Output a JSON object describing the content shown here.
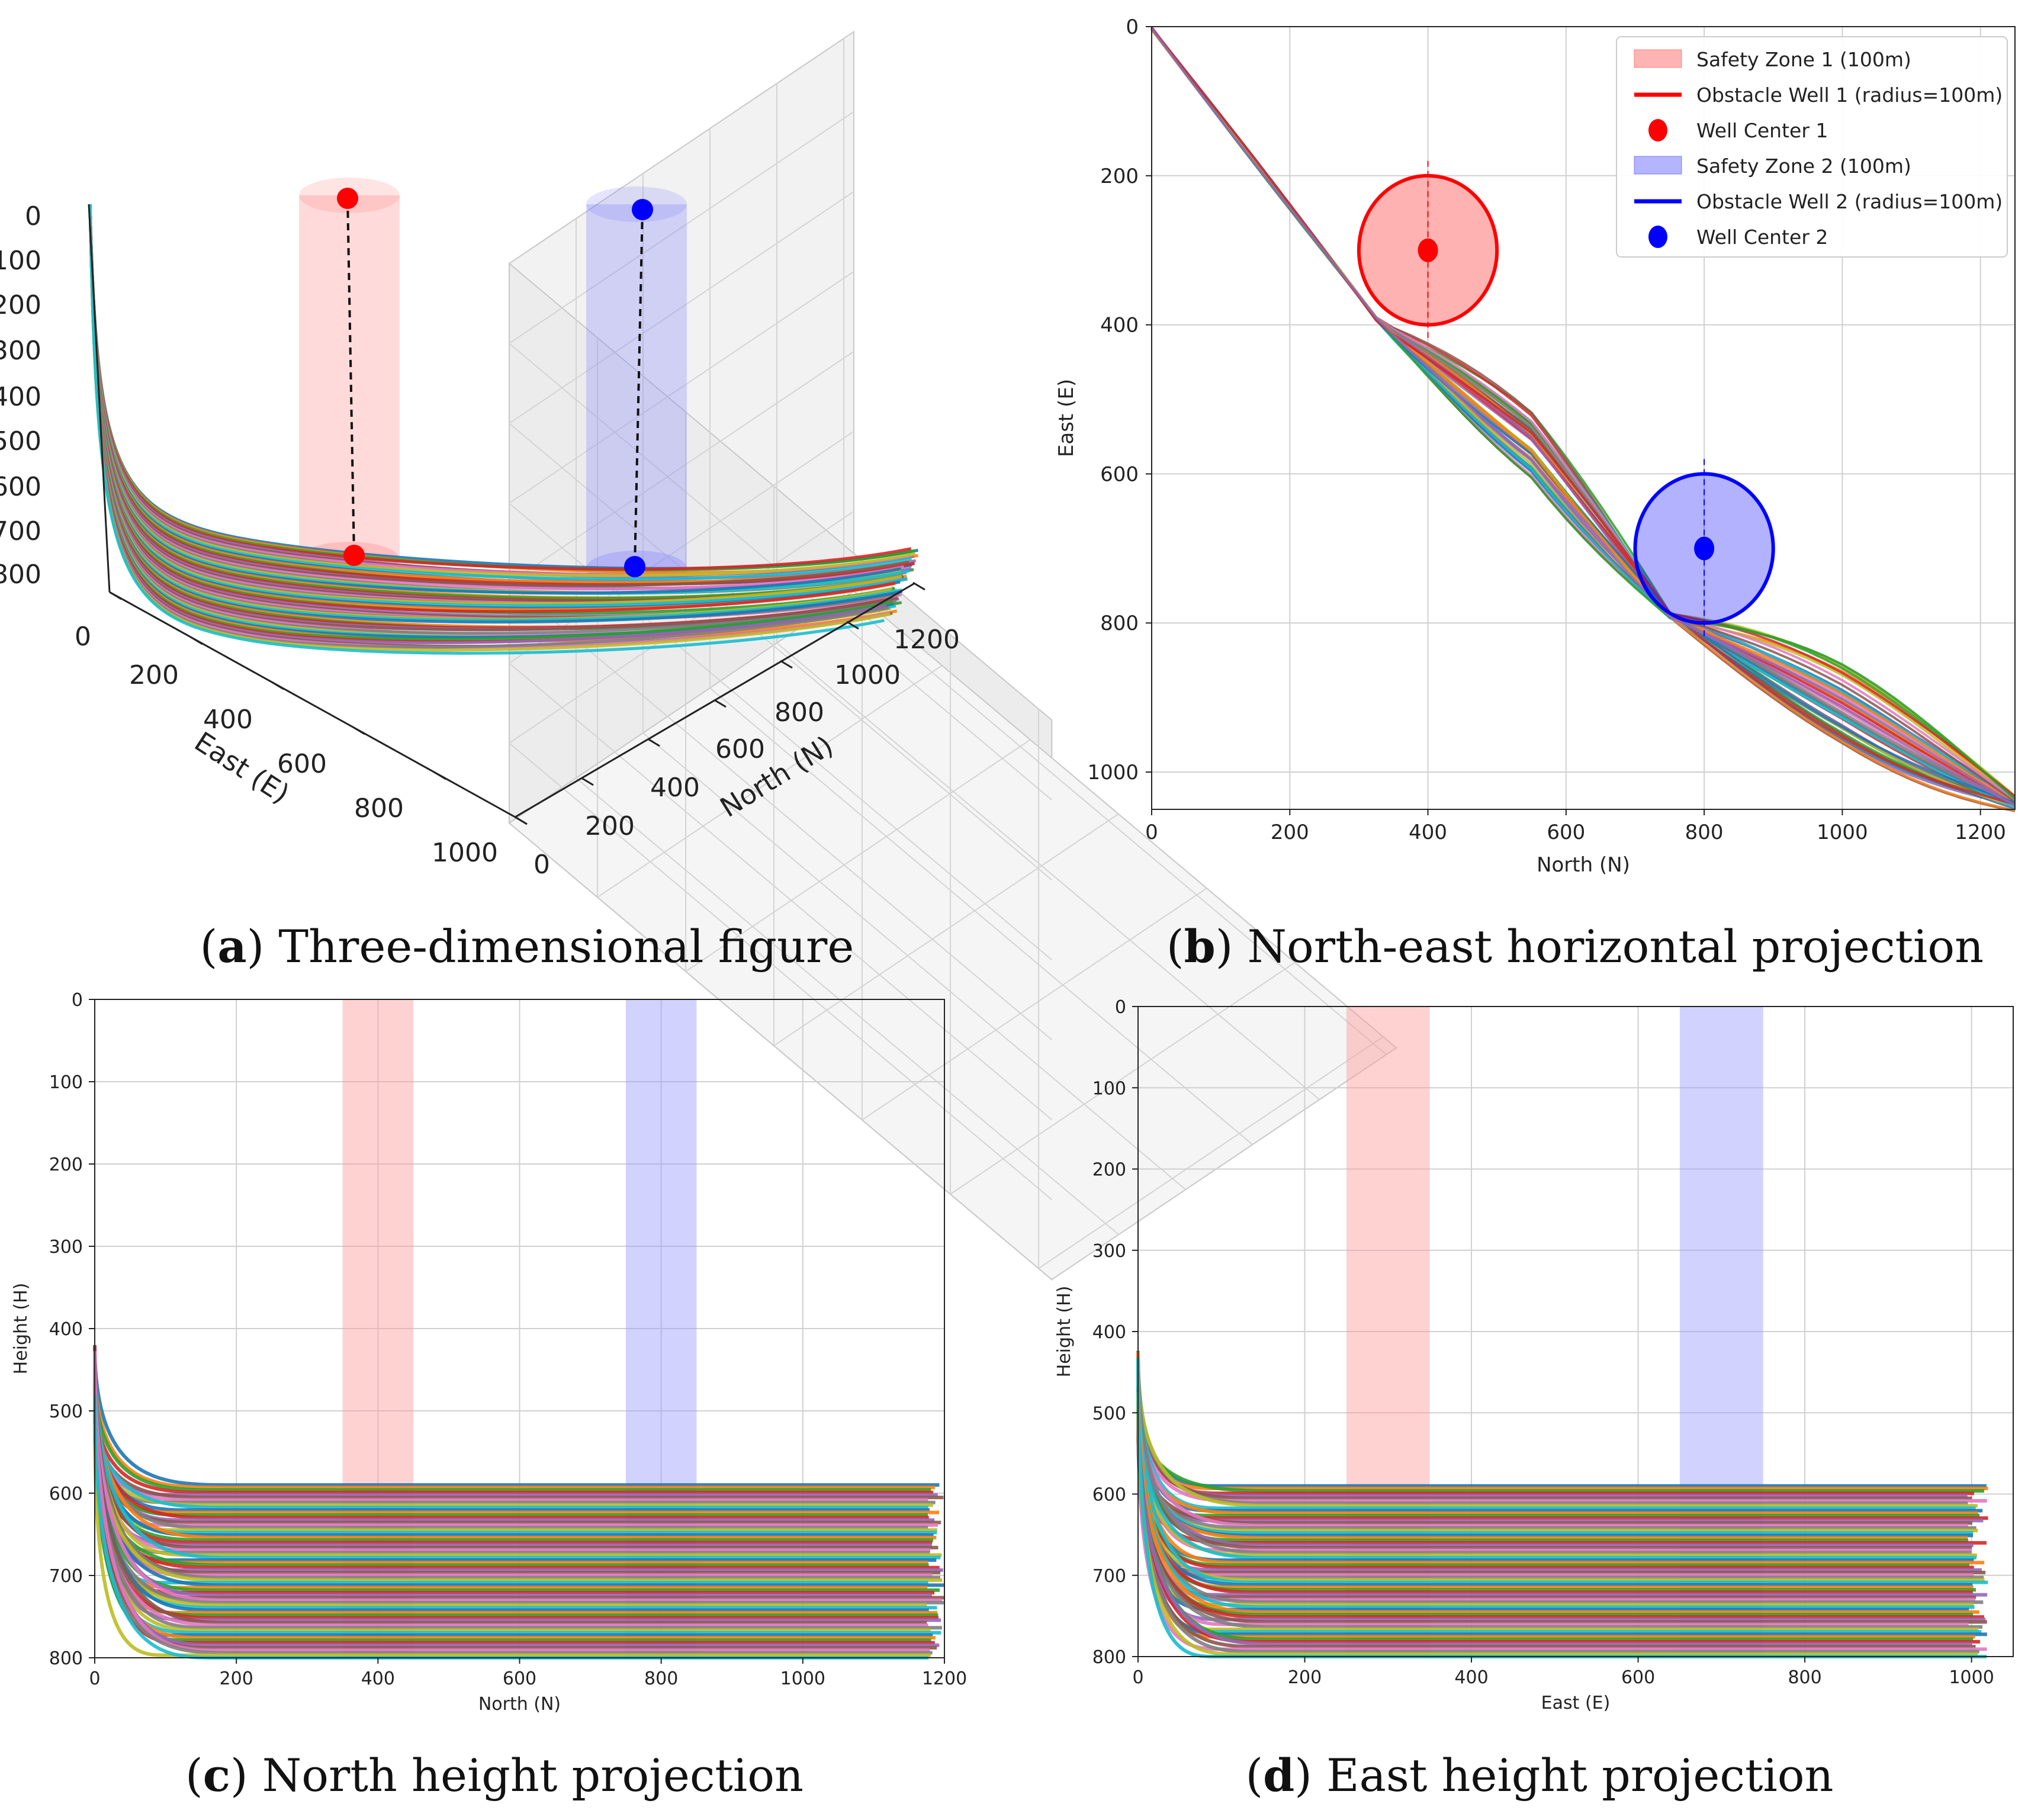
{
  "palette": [
    "#1f77b4",
    "#ff7f0e",
    "#2ca02c",
    "#d62728",
    "#9467bd",
    "#8c564b",
    "#e377c2",
    "#7f7f7f",
    "#bcbd22",
    "#17becf"
  ],
  "colors": {
    "zone1": "#ff9b9b",
    "zone2": "#9b9bff",
    "well1": "#ff0000",
    "well2": "#0000ff",
    "grid": "#d0d0d0"
  },
  "captions": {
    "a": {
      "letter": "a",
      "text": ") Three-dimensional figure"
    },
    "b": {
      "letter": "b",
      "text": ") North-east horizontal projection"
    },
    "c": {
      "letter": "c",
      "text": ") North height projection"
    },
    "d": {
      "letter": "d",
      "text": ") East height projection"
    }
  },
  "chart_data": [
    {
      "id": "a",
      "type": "line",
      "title": "Three-dimensional figure",
      "xlabel": "North (N)",
      "ylabel": "East (E)",
      "zlabel": "",
      "xticks": [
        "0",
        "200",
        "400",
        "600",
        "800",
        "1000",
        "1200"
      ],
      "yticks": [
        "0",
        "200",
        "400",
        "600",
        "800",
        "1000"
      ],
      "zticks": [
        "0",
        "100",
        "200",
        "300",
        "400",
        "500",
        "600",
        "700",
        "800"
      ],
      "wells": [
        {
          "name": "Well Center 1",
          "north": 400,
          "east": 300,
          "color": "#ff0000"
        },
        {
          "name": "Well Center 2",
          "north": 800,
          "east": 700,
          "color": "#0000ff"
        }
      ],
      "trajectories": {
        "count": 60,
        "kickoff_depth_range": [
          420,
          520
        ],
        "landing_depth_range": [
          590,
          800
        ],
        "north_end": 1200,
        "east_end": 1030
      }
    },
    {
      "id": "b",
      "type": "line",
      "title": "North-east horizontal projection",
      "xlabel": "North (N)",
      "ylabel": "East (E)",
      "xlim": [
        0,
        1250
      ],
      "ylim": [
        1050,
        0
      ],
      "xticks": [
        "0",
        "200",
        "400",
        "600",
        "800",
        "1000",
        "1200"
      ],
      "yticks": [
        "0",
        "200",
        "400",
        "600",
        "800",
        "1000"
      ],
      "legend": [
        "Safety Zone 1 (100m)",
        "Obstacle Well 1 (radius=100m)",
        "Well Center 1",
        "Safety Zone 2 (100m)",
        "Obstacle Well 2 (radius=100m)",
        "Well Center 2"
      ],
      "obstacles": [
        {
          "north": 400,
          "east": 300,
          "radius": 100,
          "color": "#ff0000"
        },
        {
          "north": 800,
          "east": 700,
          "radius": 100,
          "color": "#0000ff"
        }
      ],
      "path_waypoints": [
        [
          0,
          0
        ],
        [
          330,
          400
        ],
        [
          550,
          560
        ],
        [
          750,
          790
        ],
        [
          1000,
          910
        ],
        [
          1250,
          1040
        ]
      ],
      "trajectories": {
        "count": 45
      }
    },
    {
      "id": "c",
      "type": "line",
      "title": "North height projection",
      "xlabel": "North (N)",
      "ylabel": "Height (H)",
      "xlim": [
        0,
        1200
      ],
      "ylim": [
        800,
        0
      ],
      "xticks": [
        "0",
        "200",
        "400",
        "600",
        "800",
        "1000",
        "1200"
      ],
      "yticks": [
        "0",
        "100",
        "200",
        "300",
        "400",
        "500",
        "600",
        "700",
        "800"
      ],
      "bands": [
        {
          "from": 350,
          "to": 450,
          "color": "#ff9b9b"
        },
        {
          "from": 750,
          "to": 850,
          "color": "#9b9bff"
        }
      ],
      "trajectories": {
        "count": 70,
        "kickoff_depth_range": [
          420,
          520
        ],
        "landing_depth_range": [
          590,
          800
        ],
        "x_end": 1200
      }
    },
    {
      "id": "d",
      "type": "line",
      "title": "East height projection",
      "xlabel": "East (E)",
      "ylabel": "Height (H)",
      "xlim": [
        0,
        1050
      ],
      "ylim": [
        800,
        0
      ],
      "xticks": [
        "0",
        "200",
        "400",
        "600",
        "800",
        "1000"
      ],
      "yticks": [
        "0",
        "100",
        "200",
        "300",
        "400",
        "500",
        "600",
        "700",
        "800"
      ],
      "bands": [
        {
          "from": 250,
          "to": 350,
          "color": "#ff9b9b"
        },
        {
          "from": 650,
          "to": 750,
          "color": "#9b9bff"
        }
      ],
      "trajectories": {
        "count": 70,
        "kickoff_depth_range": [
          420,
          520
        ],
        "landing_depth_range": [
          590,
          800
        ],
        "x_end": 1020
      }
    }
  ]
}
